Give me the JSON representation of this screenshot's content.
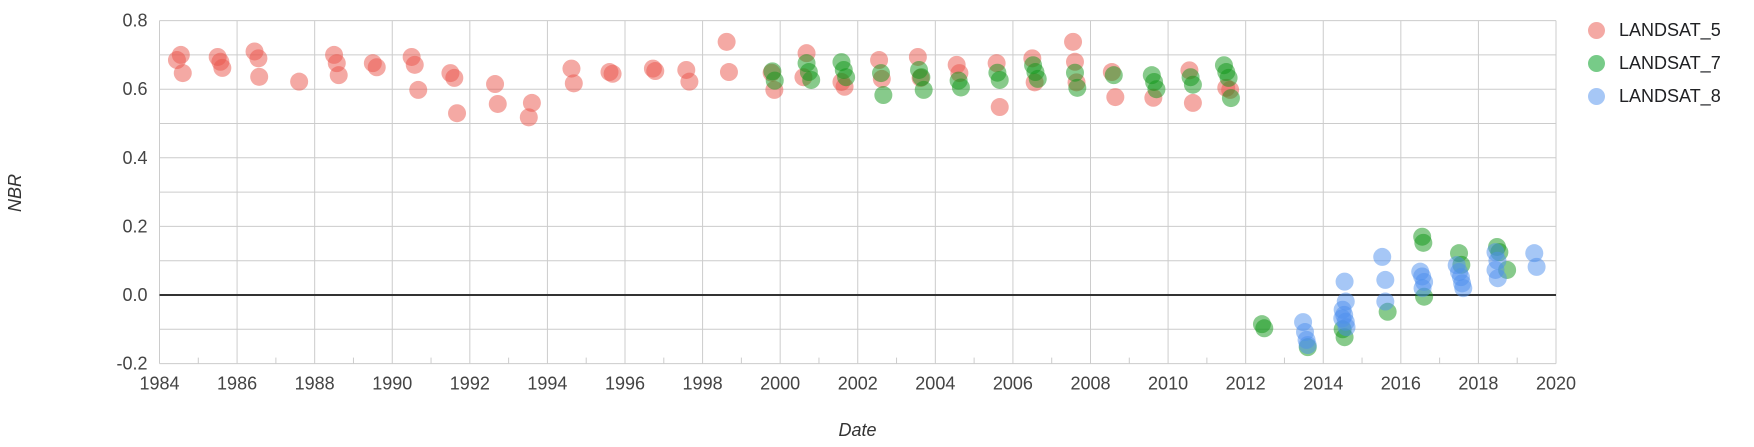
{
  "chart_data": {
    "type": "scatter",
    "title": "",
    "xlabel": "Date",
    "ylabel": "NBR",
    "grid": true,
    "legend_position": "right",
    "x_axis": {
      "range": [
        1984,
        2020
      ],
      "tick_step_years": 2,
      "ticks": [
        {
          "v": 1984,
          "label": "1984"
        },
        {
          "v": 1986,
          "label": "1986"
        },
        {
          "v": 1988,
          "label": "1988"
        },
        {
          "v": 1990,
          "label": "1990"
        },
        {
          "v": 1992,
          "label": "1992"
        },
        {
          "v": 1994,
          "label": "1994"
        },
        {
          "v": 1996,
          "label": "1996"
        },
        {
          "v": 1998,
          "label": "1998"
        },
        {
          "v": 2000,
          "label": "2000"
        },
        {
          "v": 2002,
          "label": "2002"
        },
        {
          "v": 2004,
          "label": "2004"
        },
        {
          "v": 2006,
          "label": "2006"
        },
        {
          "v": 2008,
          "label": "2008"
        },
        {
          "v": 2010,
          "label": "2010"
        },
        {
          "v": 2012,
          "label": "2012"
        },
        {
          "v": 2014,
          "label": "2014"
        },
        {
          "v": 2016,
          "label": "2016"
        },
        {
          "v": 2018,
          "label": "2018"
        },
        {
          "v": 2020,
          "label": "2020"
        }
      ],
      "minor_tick_years": [
        1985,
        1987,
        1989,
        1991,
        1993,
        1995,
        1997,
        1999,
        2001,
        2003,
        2005,
        2007,
        2009,
        2011,
        2013,
        2015,
        2017,
        2019
      ]
    },
    "y_axis": {
      "range": [
        -0.2,
        0.8
      ],
      "gridline_step": 0.1,
      "zero_line": true,
      "ticks": [
        {
          "v": 0.8,
          "label": "0.8"
        },
        {
          "v": 0.6,
          "label": "0.6"
        },
        {
          "v": 0.4,
          "label": "0.4"
        },
        {
          "v": 0.2,
          "label": "0.2"
        },
        {
          "v": 0.0,
          "label": "0.0"
        },
        {
          "v": -0.2,
          "label": "-0.2"
        }
      ]
    },
    "style": {
      "gridline_color": "#cccccc",
      "zero_line_color": "#333333",
      "tick_label_color": "#444444",
      "point_radius": 9,
      "point_opacity": 0.5
    },
    "series": [
      {
        "name": "LANDSAT_5",
        "color": "#e95349",
        "legend_swatch": "#f4a9a4",
        "points": [
          [
            1984.45,
            0.685
          ],
          [
            1984.55,
            0.7
          ],
          [
            1984.6,
            0.647
          ],
          [
            1985.5,
            0.694
          ],
          [
            1985.57,
            0.68
          ],
          [
            1985.62,
            0.662
          ],
          [
            1986.45,
            0.71
          ],
          [
            1986.55,
            0.69
          ],
          [
            1986.57,
            0.636
          ],
          [
            1987.6,
            0.622
          ],
          [
            1988.5,
            0.7
          ],
          [
            1988.57,
            0.676
          ],
          [
            1988.62,
            0.641
          ],
          [
            1989.5,
            0.676
          ],
          [
            1989.6,
            0.664
          ],
          [
            1990.5,
            0.694
          ],
          [
            1990.58,
            0.671
          ],
          [
            1990.67,
            0.598
          ],
          [
            1991.5,
            0.647
          ],
          [
            1991.6,
            0.633
          ],
          [
            1991.67,
            0.53
          ],
          [
            1992.65,
            0.615
          ],
          [
            1992.72,
            0.557
          ],
          [
            1993.52,
            0.518
          ],
          [
            1993.6,
            0.56
          ],
          [
            1994.62,
            0.66
          ],
          [
            1994.68,
            0.617
          ],
          [
            1995.6,
            0.65
          ],
          [
            1995.68,
            0.645
          ],
          [
            1996.72,
            0.66
          ],
          [
            1996.78,
            0.653
          ],
          [
            1997.58,
            0.656
          ],
          [
            1997.66,
            0.622
          ],
          [
            1998.62,
            0.738
          ],
          [
            1998.68,
            0.65
          ],
          [
            1999.78,
            0.648
          ],
          [
            1999.85,
            0.598
          ],
          [
            2000.6,
            0.635
          ],
          [
            2000.68,
            0.705
          ],
          [
            2001.58,
            0.621
          ],
          [
            2001.66,
            0.607
          ],
          [
            2002.55,
            0.685
          ],
          [
            2002.62,
            0.63
          ],
          [
            2003.55,
            0.694
          ],
          [
            2003.62,
            0.633
          ],
          [
            2004.55,
            0.671
          ],
          [
            2004.62,
            0.647
          ],
          [
            2005.58,
            0.676
          ],
          [
            2005.66,
            0.548
          ],
          [
            2006.5,
            0.69
          ],
          [
            2006.56,
            0.62
          ],
          [
            2007.55,
            0.738
          ],
          [
            2007.6,
            0.68
          ],
          [
            2007.64,
            0.62
          ],
          [
            2008.55,
            0.65
          ],
          [
            2008.64,
            0.577
          ],
          [
            2009.62,
            0.575
          ],
          [
            2010.55,
            0.655
          ],
          [
            2010.64,
            0.56
          ],
          [
            2011.5,
            0.604
          ],
          [
            2011.6,
            0.598
          ]
        ]
      },
      {
        "name": "LANDSAT_7",
        "color": "#109618",
        "legend_swatch": "#77cb88",
        "points": [
          [
            1999.8,
            0.652
          ],
          [
            1999.86,
            0.625
          ],
          [
            2000.68,
            0.676
          ],
          [
            2000.74,
            0.65
          ],
          [
            2000.8,
            0.627
          ],
          [
            2001.58,
            0.679
          ],
          [
            2001.64,
            0.656
          ],
          [
            2001.7,
            0.635
          ],
          [
            2002.6,
            0.647
          ],
          [
            2002.66,
            0.583
          ],
          [
            2003.58,
            0.656
          ],
          [
            2003.64,
            0.635
          ],
          [
            2003.7,
            0.598
          ],
          [
            2004.6,
            0.625
          ],
          [
            2004.66,
            0.605
          ],
          [
            2005.6,
            0.648
          ],
          [
            2005.66,
            0.627
          ],
          [
            2006.52,
            0.67
          ],
          [
            2006.58,
            0.65
          ],
          [
            2006.64,
            0.63
          ],
          [
            2007.6,
            0.648
          ],
          [
            2007.66,
            0.604
          ],
          [
            2008.6,
            0.641
          ],
          [
            2009.58,
            0.641
          ],
          [
            2009.64,
            0.621
          ],
          [
            2009.7,
            0.6
          ],
          [
            2010.58,
            0.635
          ],
          [
            2010.64,
            0.613
          ],
          [
            2011.44,
            0.67
          ],
          [
            2011.5,
            0.65
          ],
          [
            2011.56,
            0.633
          ],
          [
            2011.62,
            0.574
          ],
          [
            2012.42,
            -0.085
          ],
          [
            2012.48,
            -0.097
          ],
          [
            2013.6,
            -0.152
          ],
          [
            2014.5,
            -0.1
          ],
          [
            2014.55,
            -0.123
          ],
          [
            2015.66,
            -0.049
          ],
          [
            2016.55,
            0.17
          ],
          [
            2016.58,
            0.152
          ],
          [
            2016.6,
            -0.005
          ],
          [
            2017.5,
            0.122
          ],
          [
            2017.56,
            0.088
          ],
          [
            2018.48,
            0.14
          ],
          [
            2018.54,
            0.125
          ],
          [
            2018.74,
            0.073
          ]
        ]
      },
      {
        "name": "LANDSAT_8",
        "color": "#4d8fed",
        "legend_swatch": "#a6c7f6",
        "points": [
          [
            2013.48,
            -0.079
          ],
          [
            2013.53,
            -0.108
          ],
          [
            2013.57,
            -0.131
          ],
          [
            2013.6,
            -0.146
          ],
          [
            2014.55,
            0.039
          ],
          [
            2014.58,
            -0.019
          ],
          [
            2014.5,
            -0.043
          ],
          [
            2014.54,
            -0.058
          ],
          [
            2014.49,
            -0.068
          ],
          [
            2014.58,
            -0.078
          ],
          [
            2014.6,
            -0.094
          ],
          [
            2015.52,
            0.111
          ],
          [
            2015.6,
            0.044
          ],
          [
            2015.6,
            -0.019
          ],
          [
            2016.5,
            0.068
          ],
          [
            2016.55,
            0.054
          ],
          [
            2016.6,
            0.038
          ],
          [
            2016.56,
            0.02
          ],
          [
            2017.44,
            0.087
          ],
          [
            2017.5,
            0.067
          ],
          [
            2017.55,
            0.052
          ],
          [
            2017.58,
            0.034
          ],
          [
            2017.61,
            0.02
          ],
          [
            2018.44,
            0.125
          ],
          [
            2018.49,
            0.1
          ],
          [
            2018.44,
            0.073
          ],
          [
            2018.5,
            0.049
          ],
          [
            2019.44,
            0.122
          ],
          [
            2019.5,
            0.082
          ]
        ]
      }
    ]
  }
}
